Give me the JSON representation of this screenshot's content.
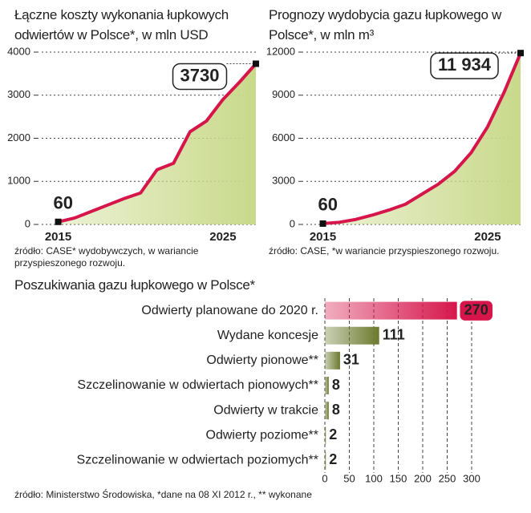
{
  "chart_data": [
    {
      "type": "line",
      "title": "Łączne koszty wykonania łupkowych odwiertów w Polsce*, w mln USD",
      "source": "źródło: CASE* wydobywczych, w wariancie przyspieszonego rozwoju.",
      "x": [
        2015,
        2016,
        2017,
        2018,
        2019,
        2020,
        2021,
        2022,
        2023,
        2024,
        2025,
        2026,
        2027
      ],
      "values": [
        60,
        150,
        300,
        450,
        600,
        730,
        1270,
        1420,
        2150,
        2400,
        2900,
        3300,
        3730
      ],
      "value_labels": [
        "60",
        null,
        null,
        null,
        null,
        null,
        null,
        null,
        null,
        null,
        null,
        null,
        "3730"
      ],
      "color": "#d6164b",
      "area_color": "#c9d98a",
      "xlim": [
        2014,
        2027
      ],
      "xticks": [
        2015,
        2025
      ],
      "ylim": [
        0,
        4000
      ],
      "yticks": [
        0,
        1000,
        2000,
        3000,
        4000
      ],
      "grid": true
    },
    {
      "type": "line",
      "title": "Prognozy wydobycia gazu łupkowego w Polsce*, w mln m³",
      "source": "źródło: CASE, *w wariancie przyspieszonego rozwoju.",
      "x": [
        2015,
        2016,
        2017,
        2018,
        2019,
        2020,
        2021,
        2022,
        2023,
        2024,
        2025,
        2026,
        2027
      ],
      "values": [
        60,
        150,
        350,
        650,
        1000,
        1400,
        2100,
        2800,
        3700,
        5000,
        6800,
        9200,
        11934
      ],
      "value_labels": [
        "60",
        null,
        null,
        null,
        null,
        null,
        null,
        null,
        null,
        null,
        null,
        null,
        "11 934"
      ],
      "color": "#d6164b",
      "area_color": "#c9d98a",
      "xlim": [
        2014,
        2027
      ],
      "xticks": [
        2015,
        2025
      ],
      "ylim": [
        0,
        12000
      ],
      "yticks": [
        0,
        3000,
        6000,
        9000,
        12000
      ],
      "grid": true
    },
    {
      "type": "hbar",
      "title": "Poszukiwania gazu łupkowego w Polsce*",
      "source": "źródło: Ministerstwo Środowiska, *dane na 08 XI 2012 r., ** wykonane",
      "categories": [
        "Odwierty planowane do 2020 r.",
        "Wydane koncesje",
        "Odwierty pionowe**",
        "Szczelinowanie w odwiertach pionowych**",
        "Odwierty w trakcie",
        "Odwierty poziome**",
        "Szczelinowanie w odwiertach poziomych**"
      ],
      "values": [
        270,
        111,
        31,
        8,
        8,
        2,
        2
      ],
      "colors": [
        "#d6164b",
        "#6b7a2e",
        "#6b7a2e",
        "#6b7a2e",
        "#6b7a2e",
        "#6b7a2e",
        "#6b7a2e"
      ],
      "xlim": [
        0,
        300
      ],
      "xticks": [
        0,
        50,
        100,
        150,
        200,
        250,
        300
      ],
      "grid": true
    }
  ]
}
